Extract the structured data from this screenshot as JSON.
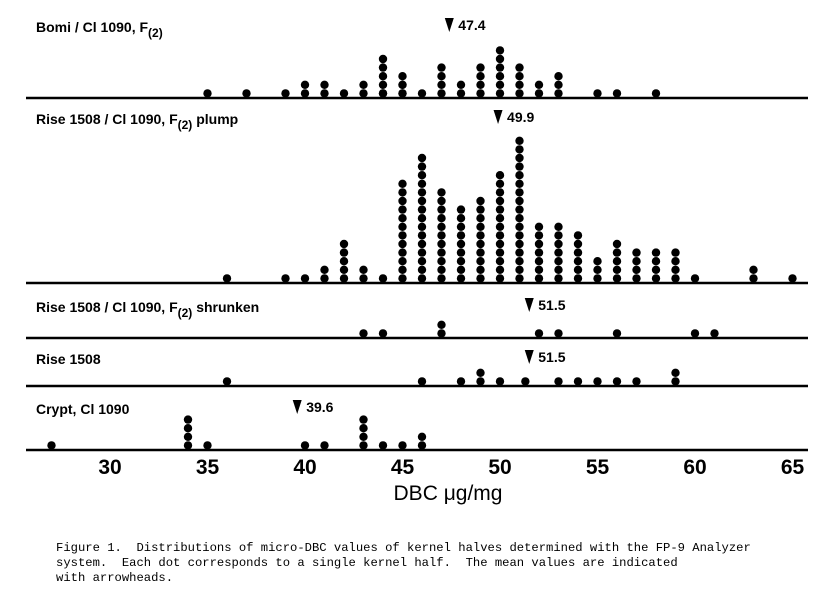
{
  "chart_data": {
    "type": "scatter",
    "title": "",
    "xlabel": "DBC μg/mg",
    "ylabel": "",
    "xlim": [
      26,
      66
    ],
    "xticks": [
      30,
      35,
      40,
      45,
      50,
      55,
      60,
      65
    ],
    "panels": [
      {
        "name": "Bomi / Cl 1090,  F",
        "subscript": "(2)",
        "suffix": "",
        "mean": 47.4,
        "mean_label": "47.4",
        "counts": [
          [
            35,
            1
          ],
          [
            37,
            1
          ],
          [
            39,
            1
          ],
          [
            40,
            2
          ],
          [
            41,
            2
          ],
          [
            42,
            1
          ],
          [
            43,
            2
          ],
          [
            44,
            1
          ],
          [
            45,
            2
          ],
          [
            44,
            5
          ],
          [
            45,
            3
          ],
          [
            46,
            1
          ],
          [
            47,
            4
          ],
          [
            48,
            2
          ],
          [
            49,
            4
          ],
          [
            50,
            6
          ],
          [
            51,
            4
          ],
          [
            52,
            2
          ],
          [
            53,
            3
          ],
          [
            55,
            1
          ],
          [
            56,
            1
          ],
          [
            58,
            1
          ]
        ]
      },
      {
        "name": "Rise 1508 / Cl 1090,  F",
        "subscript": "(2)",
        "suffix": "  plump",
        "mean": 49.9,
        "mean_label": "49.9",
        "counts": [
          [
            36,
            1
          ],
          [
            39,
            1
          ],
          [
            40,
            1
          ],
          [
            41,
            2
          ],
          [
            42,
            5
          ],
          [
            43,
            2
          ],
          [
            44,
            1
          ],
          [
            45,
            12
          ],
          [
            46,
            15
          ],
          [
            47,
            11
          ],
          [
            48,
            9
          ],
          [
            49,
            10
          ],
          [
            50,
            13
          ],
          [
            51,
            17
          ],
          [
            52,
            7
          ],
          [
            53,
            7
          ],
          [
            54,
            6
          ],
          [
            55,
            3
          ],
          [
            56,
            5
          ],
          [
            57,
            4
          ],
          [
            58,
            4
          ],
          [
            59,
            4
          ],
          [
            60,
            1
          ],
          [
            63,
            2
          ],
          [
            65,
            1
          ]
        ]
      },
      {
        "name": "Rise 1508 / Cl 1090,  F",
        "subscript": "(2)",
        "suffix": "  shrunken",
        "mean": 51.5,
        "mean_label": "51.5",
        "counts": [
          [
            43,
            1
          ],
          [
            44,
            1
          ],
          [
            47,
            2
          ],
          [
            52,
            1
          ],
          [
            53,
            1
          ],
          [
            56,
            1
          ],
          [
            60,
            1
          ],
          [
            61,
            1
          ]
        ]
      },
      {
        "name": "Rise 1508",
        "subscript": "",
        "suffix": "",
        "mean": 51.5,
        "mean_label": "51.5",
        "counts": [
          [
            36,
            1
          ],
          [
            46,
            1
          ],
          [
            48,
            1
          ],
          [
            49,
            2
          ],
          [
            50,
            1
          ],
          [
            51.3,
            1
          ],
          [
            53,
            1
          ],
          [
            54,
            1
          ],
          [
            55,
            1
          ],
          [
            56,
            1
          ],
          [
            57,
            1
          ],
          [
            59,
            2
          ]
        ]
      },
      {
        "name": "Crypt,  Cl 1090",
        "subscript": "",
        "suffix": "",
        "mean": 39.6,
        "mean_label": "39.6",
        "counts": [
          [
            27,
            1
          ],
          [
            34,
            4
          ],
          [
            35,
            1
          ],
          [
            40,
            1
          ],
          [
            41,
            1
          ],
          [
            43,
            4
          ],
          [
            44,
            1
          ],
          [
            45,
            1
          ],
          [
            46,
            2
          ]
        ]
      }
    ]
  },
  "caption": [
    "Figure 1.  Distributions of micro-DBC values of kernel halves determined with the FP-9 Analyzer",
    "system.  Each dot corresponds to a single kernel half.  The mean values are indicated",
    "with arrowheads."
  ]
}
